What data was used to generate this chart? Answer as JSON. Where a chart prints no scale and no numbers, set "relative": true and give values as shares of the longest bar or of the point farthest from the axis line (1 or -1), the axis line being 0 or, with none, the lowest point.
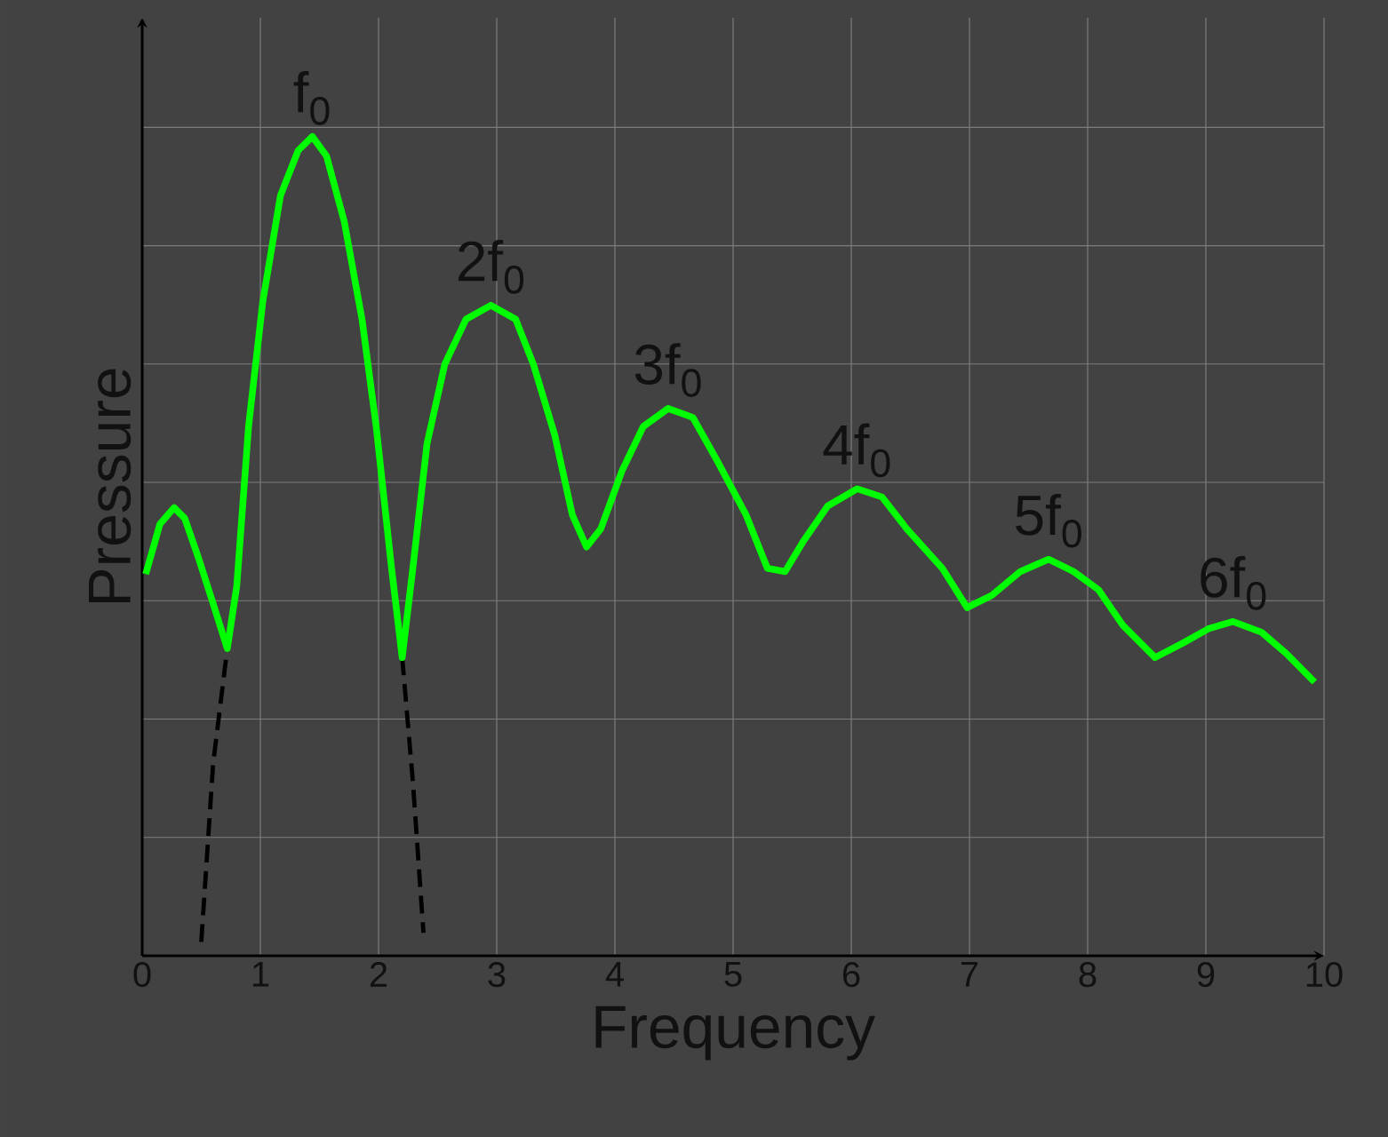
{
  "chart_data": {
    "type": "line",
    "relative": true,
    "xlabel": "Frequency",
    "ylabel": "Pressure",
    "xlim": [
      0,
      10
    ],
    "xticks": [
      0,
      1,
      2,
      3,
      4,
      5,
      6,
      7,
      8,
      9,
      10
    ],
    "grid": true,
    "marker": "none",
    "series": [
      {
        "color": "#000000",
        "line_style": "dashed",
        "x": [
          0.5,
          0.6,
          0.72,
          0.8,
          1.5,
          2.11,
          2.2,
          2.29,
          2.38
        ],
        "values": [
          0.017,
          0.234,
          0.375,
          null,
          null,
          null,
          0.364,
          0.213,
          0.028
        ]
      },
      {
        "color": "#00ff00",
        "line_style": "solid",
        "x": [
          0.03,
          0.15,
          0.27,
          0.36,
          0.48,
          0.6,
          0.72,
          0.8,
          0.9,
          1.02,
          1.17,
          1.32,
          1.44,
          1.56,
          1.71,
          1.86,
          1.98,
          2.11,
          2.2,
          2.29,
          2.41,
          2.56,
          2.74,
          2.95,
          3.16,
          3.31,
          3.49,
          3.64,
          3.76,
          3.88,
          4.06,
          4.24,
          4.45,
          4.66,
          4.87,
          5.11,
          5.29,
          5.44,
          5.59,
          5.8,
          6.05,
          6.26,
          6.47,
          6.77,
          6.98,
          7.19,
          7.43,
          7.67,
          7.88,
          8.09,
          8.3,
          8.57,
          8.81,
          9.02,
          9.23,
          9.47,
          9.68,
          9.92
        ],
        "values": [
          0.466,
          0.527,
          0.547,
          0.534,
          0.484,
          0.43,
          0.375,
          0.451,
          0.646,
          0.798,
          0.928,
          0.983,
          1.0,
          0.976,
          0.896,
          0.777,
          0.646,
          0.473,
          0.364,
          0.473,
          0.625,
          0.722,
          0.777,
          0.794,
          0.777,
          0.722,
          0.636,
          0.538,
          0.499,
          0.521,
          0.592,
          0.646,
          0.668,
          0.657,
          0.603,
          0.538,
          0.473,
          0.469,
          0.505,
          0.549,
          0.57,
          0.56,
          0.521,
          0.473,
          0.425,
          0.44,
          0.469,
          0.484,
          0.469,
          0.447,
          0.403,
          0.364,
          0.382,
          0.399,
          0.408,
          0.395,
          0.369,
          0.334
        ]
      }
    ],
    "annotations": [
      {
        "text": "f$_{0}$",
        "x": 1.44,
        "y": 1.0
      },
      {
        "text": "2f$_{0}$",
        "x": 2.95,
        "y": 0.794
      },
      {
        "text": "3f$_{0}$",
        "x": 4.45,
        "y": 0.668
      },
      {
        "text": "4f$_{0}$",
        "x": 6.05,
        "y": 0.57
      },
      {
        "text": "5f$_{0}$",
        "x": 7.67,
        "y": 0.484
      },
      {
        "text": "6f$_{0}$",
        "x": 9.23,
        "y": 0.408
      }
    ]
  }
}
